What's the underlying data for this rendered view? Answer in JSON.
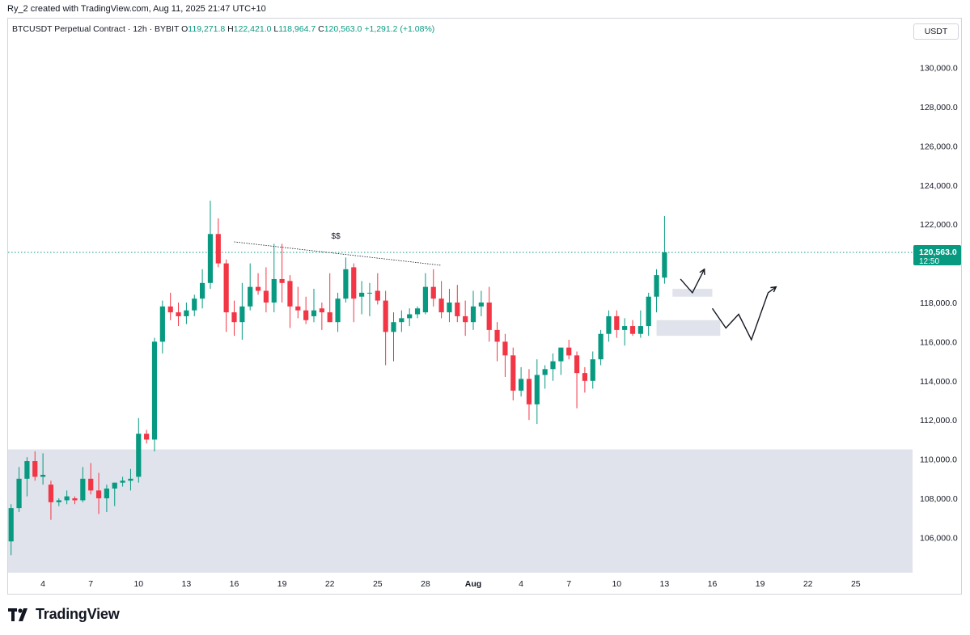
{
  "header": {
    "author_line": "Ry_2 created with TradingView.com, Aug 11, 2025 21:47 UTC+10"
  },
  "legend": {
    "symbol": "BTCUSDT Perpetual Contract · 12h · BYBIT",
    "o_label": "O",
    "o_value": "119,271.8",
    "h_label": "H",
    "h_value": "122,421.0",
    "l_label": "L",
    "l_value": "118,964.7",
    "c_label": "C",
    "c_value": "120,563.0",
    "change": "+1,291.2 (+1.08%)"
  },
  "currency": "USDT",
  "last_price": {
    "value": "120,563.0",
    "countdown": "12:50",
    "price": 120563
  },
  "annotation": {
    "liquidity_label": "$$"
  },
  "brand": {
    "name": "TradingView"
  },
  "colors": {
    "up": "#089981",
    "down": "#f23645",
    "zone": "#e0e3eb",
    "last_line": "#089981"
  },
  "chart_data": {
    "type": "candlestick",
    "timeframe": "12h",
    "y_ticks": [
      "130,000.0",
      "128,000.0",
      "126,000.0",
      "124,000.0",
      "122,000.0",
      "118,000.0",
      "116,000.0",
      "114,000.0",
      "112,000.0",
      "110,000.0",
      "108,000.0",
      "106,000.0"
    ],
    "y_tick_values": [
      130000,
      128000,
      126000,
      124000,
      122000,
      118000,
      116000,
      114000,
      112000,
      110000,
      108000,
      106000
    ],
    "x_ticks": [
      {
        "label": "4",
        "bar": 4
      },
      {
        "label": "7",
        "bar": 10
      },
      {
        "label": "10",
        "bar": 16
      },
      {
        "label": "13",
        "bar": 22
      },
      {
        "label": "16",
        "bar": 28
      },
      {
        "label": "19",
        "bar": 34
      },
      {
        "label": "22",
        "bar": 40
      },
      {
        "label": "25",
        "bar": 46
      },
      {
        "label": "28",
        "bar": 52
      },
      {
        "label": "Aug",
        "bar": 58,
        "bold": true
      },
      {
        "label": "4",
        "bar": 64
      },
      {
        "label": "7",
        "bar": 70
      },
      {
        "label": "10",
        "bar": 76
      },
      {
        "label": "13",
        "bar": 82
      },
      {
        "label": "16",
        "bar": 88
      },
      {
        "label": "19",
        "bar": 94
      },
      {
        "label": "22",
        "bar": 100
      },
      {
        "label": "25",
        "bar": 106
      }
    ],
    "candles": [
      [
        105800,
        107700,
        105100,
        107500
      ],
      [
        107500,
        109600,
        107300,
        109000
      ],
      [
        109000,
        110100,
        108100,
        109900
      ],
      [
        109900,
        110400,
        108900,
        109100
      ],
      [
        109100,
        110300,
        108700,
        109200
      ],
      [
        108700,
        108900,
        106900,
        107800
      ],
      [
        107800,
        108000,
        107600,
        107900
      ],
      [
        107900,
        108400,
        107700,
        108100
      ],
      [
        108000,
        108100,
        107700,
        107900
      ],
      [
        107900,
        109600,
        107800,
        109000
      ],
      [
        109000,
        109800,
        108200,
        108400
      ],
      [
        108400,
        109300,
        107200,
        108000
      ],
      [
        108000,
        108700,
        107300,
        108500
      ],
      [
        108500,
        108800,
        107600,
        108800
      ],
      [
        108800,
        109100,
        108600,
        108900
      ],
      [
        108900,
        109500,
        108400,
        109000
      ],
      [
        109100,
        112100,
        108800,
        111300
      ],
      [
        111300,
        111500,
        110800,
        111000
      ],
      [
        111000,
        116200,
        110400,
        116000
      ],
      [
        116000,
        118100,
        115400,
        117800
      ],
      [
        117800,
        118500,
        117100,
        117500
      ],
      [
        117500,
        118000,
        116800,
        117300
      ],
      [
        117300,
        118000,
        116900,
        117600
      ],
      [
        117600,
        118400,
        117300,
        118200
      ],
      [
        118200,
        119700,
        117700,
        119000
      ],
      [
        119000,
        123200,
        118700,
        121500
      ],
      [
        121500,
        122300,
        119800,
        120000
      ],
      [
        120000,
        120200,
        116500,
        117500
      ],
      [
        117500,
        118100,
        116300,
        117000
      ],
      [
        117000,
        119000,
        116100,
        117800
      ],
      [
        117800,
        120000,
        117600,
        118800
      ],
      [
        118800,
        119500,
        118400,
        118600
      ],
      [
        118600,
        119800,
        117500,
        118000
      ],
      [
        118000,
        121000,
        117500,
        119200
      ],
      [
        119200,
        121000,
        118000,
        119000
      ],
      [
        119100,
        119400,
        116700,
        117800
      ],
      [
        117800,
        118800,
        117200,
        117600
      ],
      [
        117600,
        118300,
        116900,
        117100
      ],
      [
        117300,
        118700,
        117000,
        117600
      ],
      [
        117700,
        118000,
        116600,
        117500
      ],
      [
        117500,
        119500,
        117000,
        117000
      ],
      [
        117000,
        118500,
        116500,
        118200
      ],
      [
        118200,
        120300,
        118000,
        119700
      ],
      [
        119800,
        120000,
        117000,
        118200
      ],
      [
        118300,
        119100,
        117400,
        118500
      ],
      [
        118500,
        119000,
        117300,
        118500
      ],
      [
        118600,
        119500,
        117900,
        118100
      ],
      [
        118100,
        118600,
        114800,
        116500
      ],
      [
        116500,
        117500,
        115000,
        117000
      ],
      [
        117000,
        117600,
        116500,
        117200
      ],
      [
        117200,
        117700,
        116800,
        117400
      ],
      [
        117400,
        117800,
        117200,
        117700
      ],
      [
        117500,
        119500,
        117400,
        118800
      ],
      [
        118800,
        119700,
        117800,
        118200
      ],
      [
        118200,
        119100,
        117200,
        117500
      ],
      [
        117500,
        118700,
        117000,
        118000
      ],
      [
        118000,
        118900,
        117000,
        117300
      ],
      [
        117300,
        118100,
        116300,
        117000
      ],
      [
        117000,
        118600,
        116600,
        117800
      ],
      [
        117800,
        118600,
        117300,
        118000
      ],
      [
        118000,
        118800,
        116000,
        116600
      ],
      [
        116600,
        117000,
        115000,
        116000
      ],
      [
        116000,
        116400,
        114200,
        115300
      ],
      [
        115300,
        115700,
        113000,
        113500
      ],
      [
        113500,
        114700,
        113200,
        114100
      ],
      [
        114100,
        114600,
        112000,
        112800
      ],
      [
        112800,
        115100,
        111800,
        114300
      ],
      [
        114300,
        114800,
        113600,
        114600
      ],
      [
        114600,
        115400,
        114000,
        115000
      ],
      [
        115000,
        115500,
        114300,
        115700
      ],
      [
        115700,
        116100,
        115100,
        115300
      ],
      [
        115300,
        115500,
        112600,
        114400
      ],
      [
        114400,
        114700,
        113400,
        114000
      ],
      [
        114000,
        115500,
        113600,
        115100
      ],
      [
        115100,
        116600,
        114800,
        116400
      ],
      [
        116400,
        117600,
        116000,
        117300
      ],
      [
        117300,
        117600,
        116200,
        116600
      ],
      [
        116600,
        117200,
        115800,
        116800
      ],
      [
        116800,
        117100,
        116300,
        116400
      ],
      [
        116400,
        117600,
        116200,
        116800
      ],
      [
        116800,
        118500,
        116300,
        118300
      ],
      [
        118300,
        119700,
        117500,
        119400
      ],
      [
        119272,
        122421,
        118965,
        120563
      ]
    ],
    "zones": [
      {
        "from_bar": -1,
        "to_bar": 120,
        "top": 110500,
        "bottom": 104200
      },
      {
        "from_bar": 83,
        "to_bar": 88,
        "top": 118700,
        "bottom": 118300
      },
      {
        "from_bar": 81,
        "to_bar": 89,
        "top": 117100,
        "bottom": 116300
      }
    ],
    "liquidity_line": {
      "from_bar": 28,
      "from_price": 121100,
      "to_bar": 54,
      "to_price": 119900
    },
    "projection_paths": [
      [
        [
          84,
          119200
        ],
        [
          85.5,
          118500
        ],
        [
          87,
          119700
        ]
      ],
      [
        [
          88,
          117700
        ],
        [
          89.7,
          116700
        ],
        [
          91.3,
          117400
        ],
        [
          92.9,
          116100
        ],
        [
          95,
          118500
        ],
        [
          96,
          118800
        ]
      ]
    ],
    "y_scale": {
      "min": 104200,
      "max": 131800
    },
    "grid": false
  }
}
